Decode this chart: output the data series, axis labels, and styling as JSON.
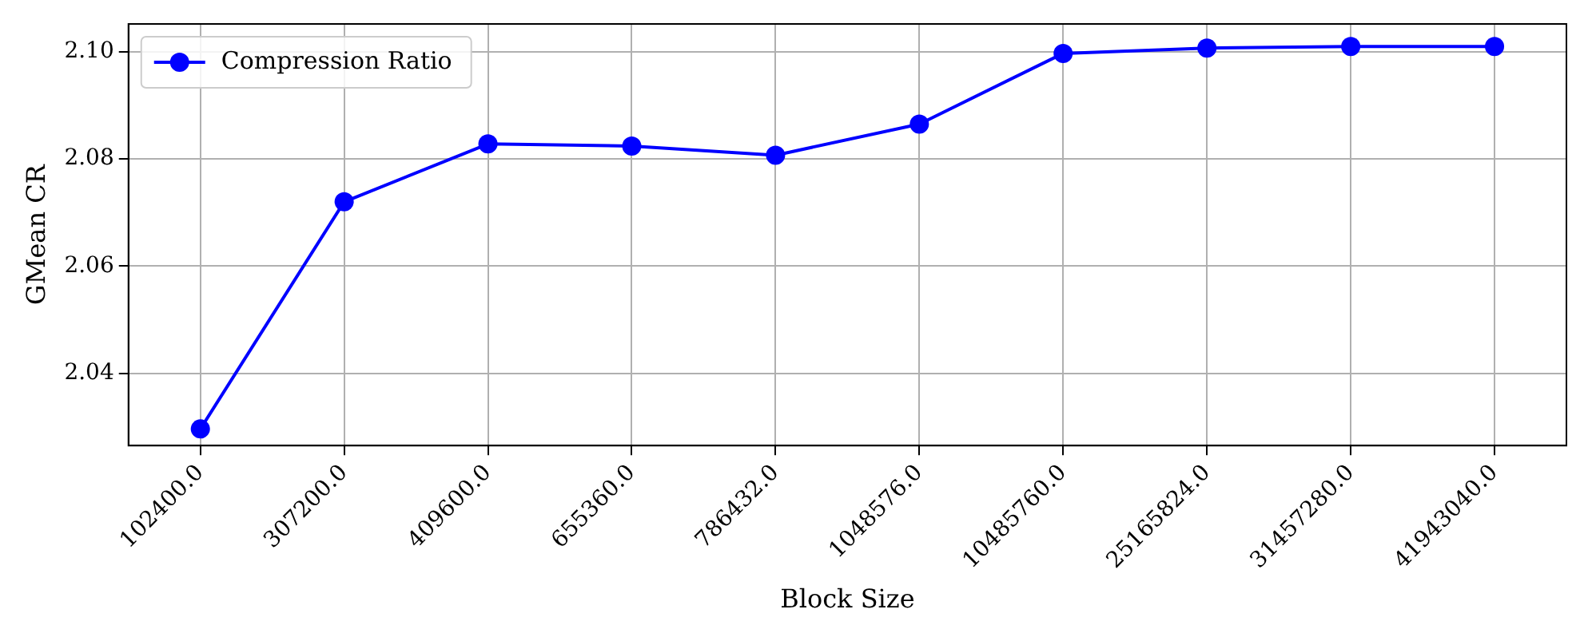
{
  "chart_data": {
    "type": "line",
    "xlabel": "Block Size",
    "ylabel": "GMean CR",
    "categories": [
      "102400.0",
      "307200.0",
      "409600.0",
      "655360.0",
      "786432.0",
      "1048576.0",
      "10485760.0",
      "25165824.0",
      "31457280.0",
      "41943040.0"
    ],
    "series": [
      {
        "name": "Compression Ratio",
        "color": "#0000ff",
        "values": [
          2.0296,
          2.072,
          2.0828,
          2.0824,
          2.0807,
          2.0865,
          2.0997,
          2.1007,
          2.101,
          2.101
        ]
      }
    ],
    "ylim": [
      2.0265,
      2.1052
    ],
    "yticks": [
      {
        "value": 2.04,
        "label": "2.04"
      },
      {
        "value": 2.06,
        "label": "2.06"
      },
      {
        "value": 2.08,
        "label": "2.08"
      },
      {
        "value": 2.1,
        "label": "2.10"
      }
    ],
    "grid": true,
    "legend": "top left",
    "marker": "circle",
    "line_style": "solid"
  }
}
